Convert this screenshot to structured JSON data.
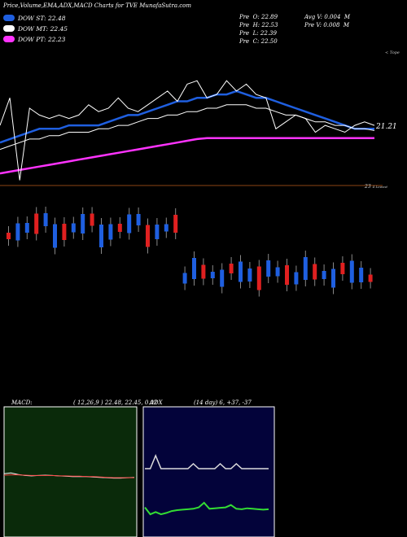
{
  "header": {
    "title": "Price,Volume,EMA,ADX,MACD Charts for TVE MunafaSutra.com",
    "stats": [
      {
        "label": "Pre",
        "key": "O:",
        "value": "22.89"
      },
      {
        "label": "Pre",
        "key": "H:",
        "value": "22.53"
      },
      {
        "label": "Pre",
        "key": "L:",
        "value": "22.39"
      },
      {
        "label": "Pre",
        "key": "C:",
        "value": "22.50"
      }
    ],
    "volume": [
      {
        "text": "Avg V: 0.004",
        "unit": "M"
      },
      {
        "text": "Pre V: 0.008",
        "unit": "M"
      }
    ]
  },
  "legend": [
    {
      "label": "DOW ST: 22.48",
      "color": "#1f5fe0"
    },
    {
      "label": "DOW MT: 22.45",
      "color": "#ffffff"
    },
    {
      "label": "DOW PT: 22.23",
      "color": "#ff33ff"
    }
  ],
  "price_chart": {
    "right_top_label": "< Tope",
    "price_label": "21.21",
    "bottom_right_label": "23",
    "bottom_right_small": "4 Lowest"
  },
  "macd": {
    "title": "MACD",
    "params": "( 12,26,9 ) 22.48, 22.45, 0.02",
    "bg": "#0a2a0a"
  },
  "adx": {
    "title": "ADX",
    "params": "(14  day) 6, +37, -37",
    "bg": "#03033a"
  },
  "chart_data": [
    {
      "type": "line",
      "name": "price",
      "series": [
        {
          "name": "DOW ST",
          "color": "#1f5fe0",
          "values": [
            22.1,
            22.2,
            22.3,
            22.4,
            22.5,
            22.5,
            22.5,
            22.6,
            22.6,
            22.6,
            22.6,
            22.7,
            22.8,
            22.9,
            22.9,
            23.0,
            23.1,
            23.2,
            23.3,
            23.3,
            23.4,
            23.4,
            23.5,
            23.5,
            23.6,
            23.5,
            23.4,
            23.4,
            23.3,
            23.2,
            23.1,
            23.0,
            22.9,
            22.8,
            22.7,
            22.6,
            22.5,
            22.5,
            22.5
          ]
        },
        {
          "name": "DOW MT",
          "color": "#ffffff",
          "values": [
            21.9,
            22.0,
            22.1,
            22.2,
            22.2,
            22.3,
            22.3,
            22.4,
            22.4,
            22.4,
            22.5,
            22.5,
            22.6,
            22.6,
            22.7,
            22.8,
            22.8,
            22.9,
            22.9,
            23.0,
            23.0,
            23.1,
            23.1,
            23.2,
            23.2,
            23.2,
            23.1,
            23.1,
            23.0,
            22.9,
            22.9,
            22.8,
            22.7,
            22.7,
            22.6,
            22.6,
            22.5,
            22.5,
            22.45
          ]
        },
        {
          "name": "DOW PT",
          "color": "#ff33ff",
          "values": [
            21.2,
            21.25,
            21.3,
            21.35,
            21.4,
            21.45,
            21.5,
            21.55,
            21.6,
            21.65,
            21.7,
            21.75,
            21.8,
            21.85,
            21.9,
            21.95,
            22.0,
            22.05,
            22.1,
            22.15,
            22.2,
            22.23,
            22.23,
            22.23,
            22.23,
            22.23,
            22.23,
            22.23,
            22.23,
            22.23,
            22.23,
            22.23,
            22.23,
            22.23,
            22.23,
            22.23,
            22.23,
            22.23,
            22.23
          ]
        },
        {
          "name": "Close",
          "color": "#ffffff",
          "values": [
            22.6,
            23.4,
            21.0,
            23.1,
            22.9,
            22.8,
            22.9,
            22.8,
            22.9,
            23.2,
            23.0,
            23.1,
            23.4,
            23.1,
            23.0,
            23.2,
            23.4,
            23.6,
            23.3,
            23.8,
            23.9,
            23.4,
            23.5,
            23.9,
            23.6,
            23.8,
            23.5,
            23.4,
            22.5,
            22.7,
            22.9,
            22.8,
            22.4,
            22.6,
            22.5,
            22.4,
            22.6,
            22.7,
            22.6
          ]
        }
      ]
    },
    {
      "type": "line",
      "name": "macd",
      "series": [
        {
          "name": "macd",
          "color": "#ffffff",
          "values": [
            0.1,
            0.12,
            0.08,
            0.05,
            0.04,
            0.05,
            0.06,
            0.05,
            0.04,
            0.03,
            0.02,
            0.02,
            0.02,
            0.01,
            0.0,
            -0.01,
            -0.02,
            -0.02,
            -0.01,
            0.0
          ]
        },
        {
          "name": "signal",
          "color": "#ff4444",
          "values": [
            0.06,
            0.07,
            0.07,
            0.06,
            0.05,
            0.05,
            0.05,
            0.05,
            0.04,
            0.04,
            0.03,
            0.03,
            0.02,
            0.02,
            0.01,
            0.0,
            -0.01,
            -0.01,
            -0.01,
            -0.01
          ]
        }
      ]
    },
    {
      "type": "line",
      "name": "adx",
      "series": [
        {
          "name": "adx",
          "color": "#dddddd",
          "values": [
            6,
            6,
            30,
            6,
            6,
            6,
            6,
            6,
            6,
            15,
            6,
            6,
            6,
            6,
            15,
            6,
            6,
            15,
            6,
            6,
            6,
            6,
            6,
            6
          ]
        },
        {
          "name": "dmi",
          "color": "#33dd33",
          "values": [
            -30,
            -45,
            -40,
            -45,
            -42,
            -38,
            -36,
            -35,
            -34,
            -33,
            -30,
            -20,
            -33,
            -32,
            -31,
            -30,
            -25,
            -33,
            -34,
            -32,
            -33,
            -34,
            -35,
            -34
          ]
        }
      ]
    }
  ]
}
